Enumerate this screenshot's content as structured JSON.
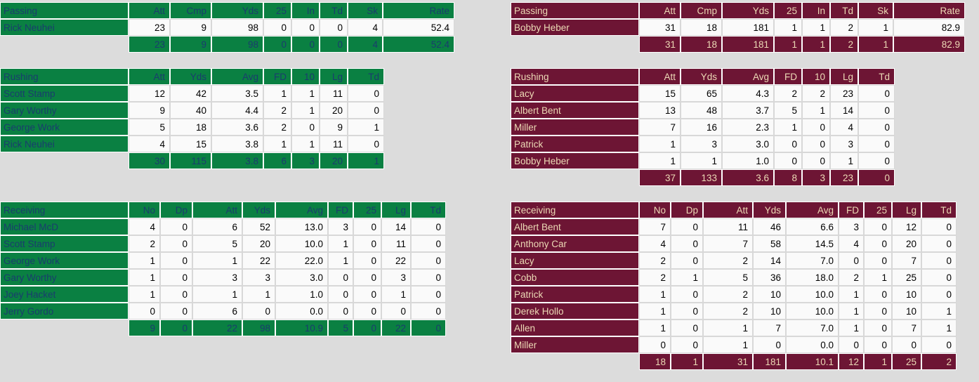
{
  "colors": {
    "page_bg": "#dcdcdc",
    "left_team_color": "#0a8042",
    "left_label_color": "#1a3c6e",
    "right_team_color": "#6d1534",
    "right_label_color": "#ecd9b5",
    "data_cell_bg": "#fafafa",
    "data_text_color": "#000000"
  },
  "teams": [
    {
      "side": "left",
      "tables": [
        {
          "kind": "passing",
          "title": "Passing",
          "columns": [
            "Att",
            "Cmp",
            "Yds",
            "25",
            "In",
            "Td",
            "Sk",
            "Rate"
          ],
          "rows": [
            {
              "player": "Rick Neuhei",
              "values": [
                "23",
                "9",
                "98",
                "0",
                "0",
                "0",
                "4",
                "52.4"
              ]
            }
          ],
          "totals": [
            "23",
            "9",
            "98",
            "0",
            "0",
            "0",
            "4",
            "52.4"
          ]
        },
        {
          "kind": "rushing",
          "title": "Rushing",
          "columns": [
            "Att",
            "Yds",
            "Avg",
            "FD",
            "10",
            "Lg",
            "Td"
          ],
          "rows": [
            {
              "player": "Scott Stamp",
              "values": [
                "12",
                "42",
                "3.5",
                "1",
                "1",
                "11",
                "0"
              ]
            },
            {
              "player": "Gary Worthy",
              "values": [
                "9",
                "40",
                "4.4",
                "2",
                "1",
                "20",
                "0"
              ]
            },
            {
              "player": "George Work",
              "values": [
                "5",
                "18",
                "3.6",
                "2",
                "0",
                "9",
                "1"
              ]
            },
            {
              "player": "Rick Neuhei",
              "values": [
                "4",
                "15",
                "3.8",
                "1",
                "1",
                "11",
                "0"
              ]
            }
          ],
          "totals": [
            "30",
            "115",
            "3.8",
            "6",
            "3",
            "20",
            "1"
          ]
        },
        {
          "kind": "receiving",
          "title": "Receiving",
          "columns": [
            "No",
            "Dp",
            "Att",
            "Yds",
            "Avg",
            "FD",
            "25",
            "Lg",
            "Td"
          ],
          "rows": [
            {
              "player": "Michael McD",
              "values": [
                "4",
                "0",
                "6",
                "52",
                "13.0",
                "3",
                "0",
                "14",
                "0"
              ]
            },
            {
              "player": "Scott Stamp",
              "values": [
                "2",
                "0",
                "5",
                "20",
                "10.0",
                "1",
                "0",
                "11",
                "0"
              ]
            },
            {
              "player": "George Work",
              "values": [
                "1",
                "0",
                "1",
                "22",
                "22.0",
                "1",
                "0",
                "22",
                "0"
              ]
            },
            {
              "player": "Gary Worthy",
              "values": [
                "1",
                "0",
                "3",
                "3",
                "3.0",
                "0",
                "0",
                "3",
                "0"
              ]
            },
            {
              "player": "Joey Hacket",
              "values": [
                "1",
                "0",
                "1",
                "1",
                "1.0",
                "0",
                "0",
                "1",
                "0"
              ]
            },
            {
              "player": "Jerry Gordo",
              "values": [
                "0",
                "0",
                "6",
                "0",
                "0.0",
                "0",
                "0",
                "0",
                "0"
              ]
            }
          ],
          "totals": [
            "9",
            "0",
            "22",
            "98",
            "10.9",
            "5",
            "0",
            "22",
            "0"
          ]
        }
      ]
    },
    {
      "side": "right",
      "tables": [
        {
          "kind": "passing",
          "title": "Passing",
          "columns": [
            "Att",
            "Cmp",
            "Yds",
            "25",
            "In",
            "Td",
            "Sk",
            "Rate"
          ],
          "rows": [
            {
              "player": "Bobby Heber",
              "values": [
                "31",
                "18",
                "181",
                "1",
                "1",
                "2",
                "1",
                "82.9"
              ]
            }
          ],
          "totals": [
            "31",
            "18",
            "181",
            "1",
            "1",
            "2",
            "1",
            "82.9"
          ]
        },
        {
          "kind": "rushing",
          "title": "Rushing",
          "columns": [
            "Att",
            "Yds",
            "Avg",
            "FD",
            "10",
            "Lg",
            "Td"
          ],
          "rows": [
            {
              "player": "Lacy",
              "values": [
                "15",
                "65",
                "4.3",
                "2",
                "2",
                "23",
                "0"
              ]
            },
            {
              "player": "Albert Bent",
              "values": [
                "13",
                "48",
                "3.7",
                "5",
                "1",
                "14",
                "0"
              ]
            },
            {
              "player": "Miller",
              "values": [
                "7",
                "16",
                "2.3",
                "1",
                "0",
                "4",
                "0"
              ]
            },
            {
              "player": "Patrick",
              "values": [
                "1",
                "3",
                "3.0",
                "0",
                "0",
                "3",
                "0"
              ]
            },
            {
              "player": "Bobby Heber",
              "values": [
                "1",
                "1",
                "1.0",
                "0",
                "0",
                "1",
                "0"
              ]
            }
          ],
          "totals": [
            "37",
            "133",
            "3.6",
            "8",
            "3",
            "23",
            "0"
          ]
        },
        {
          "kind": "receiving",
          "title": "Receiving",
          "columns": [
            "No",
            "Dp",
            "Att",
            "Yds",
            "Avg",
            "FD",
            "25",
            "Lg",
            "Td"
          ],
          "rows": [
            {
              "player": "Albert Bent",
              "values": [
                "7",
                "0",
                "11",
                "46",
                "6.6",
                "3",
                "0",
                "12",
                "0"
              ]
            },
            {
              "player": "Anthony Car",
              "values": [
                "4",
                "0",
                "7",
                "58",
                "14.5",
                "4",
                "0",
                "20",
                "0"
              ]
            },
            {
              "player": "Lacy",
              "values": [
                "2",
                "0",
                "2",
                "14",
                "7.0",
                "0",
                "0",
                "7",
                "0"
              ]
            },
            {
              "player": "Cobb",
              "values": [
                "2",
                "1",
                "5",
                "36",
                "18.0",
                "2",
                "1",
                "25",
                "0"
              ]
            },
            {
              "player": "Patrick",
              "values": [
                "1",
                "0",
                "2",
                "10",
                "10.0",
                "1",
                "0",
                "10",
                "0"
              ]
            },
            {
              "player": "Derek Hollo",
              "values": [
                "1",
                "0",
                "2",
                "10",
                "10.0",
                "1",
                "0",
                "10",
                "1"
              ]
            },
            {
              "player": "Allen",
              "values": [
                "1",
                "0",
                "1",
                "7",
                "7.0",
                "1",
                "0",
                "7",
                "1"
              ]
            },
            {
              "player": "Miller",
              "values": [
                "0",
                "0",
                "1",
                "0",
                "0.0",
                "0",
                "0",
                "0",
                "0"
              ]
            }
          ],
          "totals": [
            "18",
            "1",
            "31",
            "181",
            "10.1",
            "12",
            "1",
            "25",
            "2"
          ]
        }
      ]
    }
  ]
}
